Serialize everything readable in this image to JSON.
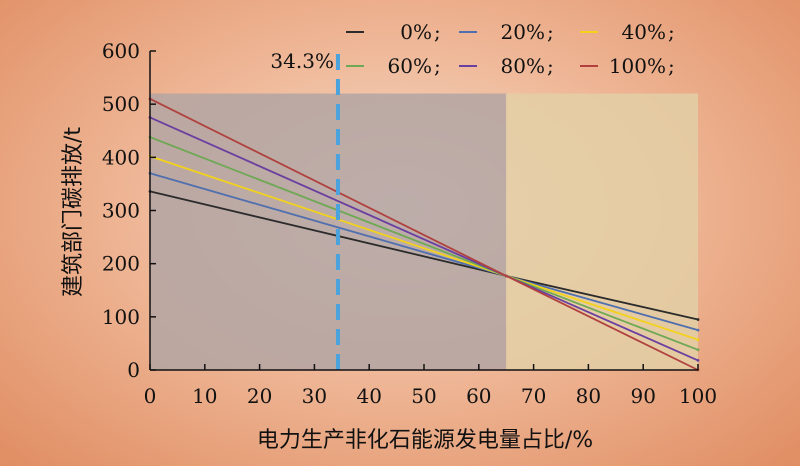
{
  "chart_data": {
    "type": "line",
    "title": "",
    "xlabel": "电力生产非化石能源发电量占比/%",
    "ylabel": "建筑部门碳排放/t",
    "xlim": [
      0,
      100
    ],
    "ylim": [
      0,
      600
    ],
    "xticks": [
      0,
      10,
      20,
      30,
      40,
      50,
      60,
      70,
      80,
      90,
      100
    ],
    "yticks": [
      0,
      100,
      200,
      300,
      400,
      500,
      600
    ],
    "legend_position": "top-right",
    "shaded_regions": [
      {
        "x0": 0,
        "x1": 65,
        "y0": 0,
        "y1": 520,
        "color": "#b3a4a3"
      },
      {
        "x0": 65,
        "x1": 100,
        "y0": 0,
        "y1": 520,
        "color": "#e3cfa6"
      }
    ],
    "vline": {
      "x": 34.3,
      "label": "34.3%",
      "color": "#4aa3dc"
    },
    "series": [
      {
        "name": "0%",
        "color": "#2b2b2b",
        "x": [
          0,
          65,
          100
        ],
        "y": [
          336,
          177,
          95
        ]
      },
      {
        "name": "20%",
        "color": "#4f6fae",
        "x": [
          0,
          65,
          100
        ],
        "y": [
          370,
          177,
          75
        ]
      },
      {
        "name": "40%",
        "color": "#f2d21b",
        "x": [
          0,
          65,
          100
        ],
        "y": [
          402,
          177,
          57
        ]
      },
      {
        "name": "60%",
        "color": "#6fa855",
        "x": [
          0,
          65,
          100
        ],
        "y": [
          438,
          177,
          38
        ]
      },
      {
        "name": "80%",
        "color": "#6a3fa0",
        "x": [
          0,
          65,
          100
        ],
        "y": [
          475,
          177,
          18
        ]
      },
      {
        "name": "100%",
        "color": "#b0413e",
        "x": [
          0,
          65,
          100
        ],
        "y": [
          510,
          177,
          0
        ]
      }
    ]
  }
}
